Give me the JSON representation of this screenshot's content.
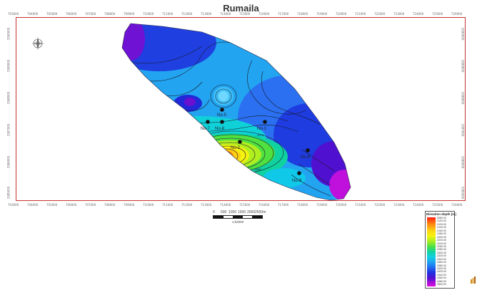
{
  "title": "Rumaila",
  "top_ticks": [
    "703000",
    "704000",
    "705000",
    "706000",
    "707000",
    "708000",
    "709000",
    "710000",
    "711000",
    "712000",
    "713000",
    "714000",
    "715000",
    "716000",
    "717000",
    "718000",
    "719000",
    "720000",
    "721000",
    "722000",
    "723000",
    "724000",
    "725000",
    "726000"
  ],
  "bottom_ticks": [
    "703000",
    "704000",
    "705000",
    "706000",
    "707000",
    "708000",
    "709000",
    "710000",
    "711000",
    "712000",
    "713000",
    "714000",
    "715000",
    "716000",
    "717000",
    "718000",
    "719000",
    "720000",
    "721000",
    "722000",
    "723000",
    "724000",
    "725000",
    "726000"
  ],
  "left_ticks": [
    "3390000",
    "3389000",
    "3388000",
    "3387000",
    "3386000",
    "3385000"
  ],
  "right_ticks": [
    "3390000",
    "3389000",
    "3388000",
    "3387000",
    "3386000",
    "3385000"
  ],
  "wells": [
    {
      "label": "No-5"
    },
    {
      "label": "No-7"
    },
    {
      "label": "No-8"
    },
    {
      "label": "No-1"
    },
    {
      "label": "No-2"
    },
    {
      "label": "No-6"
    },
    {
      "label": "No-3"
    }
  ],
  "contour_labels": [
    "-3275",
    "-3300"
  ],
  "scale": {
    "labels": [
      "0",
      "500",
      "1000",
      "1500",
      "2000",
      "2500m"
    ],
    "ratio": "1:62000"
  },
  "legend": {
    "title": "Elevation depth [m]",
    "values": [
      "-3080.00",
      "-3100.00",
      "-3120.00",
      "-3140.00",
      "-3160.00",
      "-3180.00",
      "-3200.00",
      "-3220.00",
      "-3240.00",
      "-3260.00",
      "-3280.00",
      "-3300.00",
      "-3320.00",
      "-3340.00",
      "-3360.00",
      "-3380.00",
      "-3400.00",
      "-3420.00",
      "-3440.00",
      "-3460.00",
      "-3480.00",
      "-3500.00"
    ]
  },
  "colors": {
    "frame": "#c83232",
    "deep": "#e010e0",
    "shallow": "#ff2010"
  }
}
